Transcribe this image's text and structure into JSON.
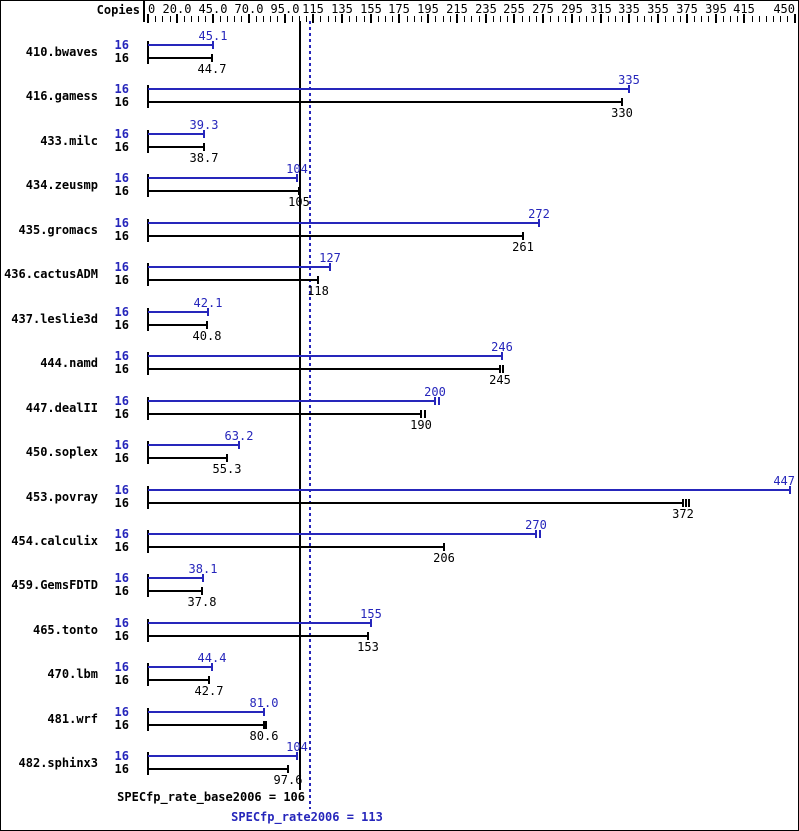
{
  "chart_data": {
    "type": "bar",
    "orientation": "horizontal",
    "copies_header": "Copies",
    "colors": {
      "peak": "#2626bb",
      "base": "#000000"
    },
    "axis": {
      "min": 0,
      "max": 451,
      "minor_tick_step": 5,
      "tick_labels": [
        {
          "text": "0",
          "value": 0
        },
        {
          "text": "20.0",
          "value": 20
        },
        {
          "text": "45.0",
          "value": 45
        },
        {
          "text": "70.0",
          "value": 70
        },
        {
          "text": "95.0",
          "value": 95
        },
        {
          "text": "115",
          "value": 115
        },
        {
          "text": "135",
          "value": 135
        },
        {
          "text": "155",
          "value": 155
        },
        {
          "text": "175",
          "value": 175
        },
        {
          "text": "195",
          "value": 195
        },
        {
          "text": "215",
          "value": 215
        },
        {
          "text": "235",
          "value": 235
        },
        {
          "text": "255",
          "value": 255
        },
        {
          "text": "275",
          "value": 275
        },
        {
          "text": "295",
          "value": 295
        },
        {
          "text": "315",
          "value": 315
        },
        {
          "text": "335",
          "value": 335
        },
        {
          "text": "355",
          "value": 355
        },
        {
          "text": "375",
          "value": 375
        },
        {
          "text": "395",
          "value": 395
        },
        {
          "text": "415",
          "value": 415
        },
        {
          "text": "450",
          "value": 450
        }
      ]
    },
    "series": [
      {
        "name": "peak",
        "color_key": "peak"
      },
      {
        "name": "base",
        "color_key": "base"
      }
    ],
    "benchmarks": [
      {
        "name": "410.bwaves",
        "copies": "16",
        "peak": 45.1,
        "peak_label": "45.1",
        "base": 44.7,
        "base_label": "44.7"
      },
      {
        "name": "416.gamess",
        "copies": "16",
        "peak": 335,
        "peak_label": "335",
        "base": 330,
        "base_label": "330"
      },
      {
        "name": "433.milc",
        "copies": "16",
        "peak": 39.3,
        "peak_label": "39.3",
        "base": 38.7,
        "base_label": "38.7"
      },
      {
        "name": "434.zeusmp",
        "copies": "16",
        "peak": 104,
        "peak_label": "104",
        "base": 105,
        "base_label": "105"
      },
      {
        "name": "435.gromacs",
        "copies": "16",
        "peak": 272,
        "peak_label": "272",
        "base": 261,
        "base_label": "261"
      },
      {
        "name": "436.cactusADM",
        "copies": "16",
        "peak": 127,
        "peak_label": "127",
        "base": 118,
        "base_label": "118"
      },
      {
        "name": "437.leslie3d",
        "copies": "16",
        "peak": 42.1,
        "peak_label": "42.1",
        "base": 40.8,
        "base_label": "40.8"
      },
      {
        "name": "444.namd",
        "copies": "16",
        "peak": 246,
        "peak_label": "246",
        "base": 245,
        "base_label": "245"
      },
      {
        "name": "447.dealII",
        "copies": "16",
        "peak": 200,
        "peak_label": "200",
        "base": 190,
        "base_label": "190"
      },
      {
        "name": "450.soplex",
        "copies": "16",
        "peak": 63.2,
        "peak_label": "63.2",
        "base": 55.3,
        "base_label": "55.3"
      },
      {
        "name": "453.povray",
        "copies": "16",
        "peak": 447,
        "peak_label": "447",
        "base": 372,
        "base_label": "372"
      },
      {
        "name": "454.calculix",
        "copies": "16",
        "peak": 270,
        "peak_label": "270",
        "base": 206,
        "base_label": "206"
      },
      {
        "name": "459.GemsFDTD",
        "copies": "16",
        "peak": 38.1,
        "peak_label": "38.1",
        "base": 37.8,
        "base_label": "37.8"
      },
      {
        "name": "465.tonto",
        "copies": "16",
        "peak": 155,
        "peak_label": "155",
        "base": 153,
        "base_label": "153"
      },
      {
        "name": "470.lbm",
        "copies": "16",
        "peak": 44.4,
        "peak_label": "44.4",
        "base": 42.7,
        "base_label": "42.7"
      },
      {
        "name": "481.wrf",
        "copies": "16",
        "peak": 81.0,
        "peak_label": "81.0",
        "base": 80.6,
        "base_label": "80.6"
      },
      {
        "name": "482.sphinx3",
        "copies": "16",
        "peak": 104,
        "peak_label": "104",
        "base": 97.6,
        "base_label": "97.6"
      }
    ],
    "extra_run_ticks": {
      "444.namd": {
        "base": [
          2
        ]
      },
      "447.dealII": {
        "peak": [
          2.5
        ],
        "base": [
          2.5
        ]
      },
      "453.povray": {
        "base": [
          2.5,
          4.5
        ]
      },
      "454.calculix": {
        "peak": [
          3
        ]
      },
      "481.wrf": {
        "base": [
          1.5
        ]
      }
    },
    "reference_lines": [
      {
        "id": "base",
        "value": 106,
        "style": "solid",
        "color": "#000000",
        "footer_label": "SPECfp_rate_base2006 = 106"
      },
      {
        "id": "peak",
        "value": 113,
        "style": "dotted",
        "color": "#2626bb",
        "footer_label": "SPECfp_rate2006 = 113"
      }
    ]
  }
}
